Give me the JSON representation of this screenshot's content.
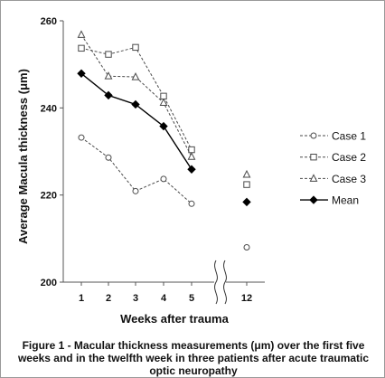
{
  "chart_data": {
    "type": "line",
    "xlabel": "Weeks after trauma",
    "ylabel": "Average Macula thickness (μm)",
    "x_tick_labels": [
      "1",
      "2",
      "3",
      "4",
      "5",
      "12"
    ],
    "y_ticks": [
      200,
      220,
      240,
      260
    ],
    "ylim": [
      200,
      260
    ],
    "axis_break_between": [
      "5",
      "12"
    ],
    "grid": false,
    "legend_position": "right",
    "series": [
      {
        "name": "Case 1",
        "marker": "circle",
        "line_style": "dashed",
        "color": "#4a4a4a",
        "values": [
          233.2,
          228.6,
          220.9,
          223.7,
          218.0,
          208.0
        ]
      },
      {
        "name": "Case 2",
        "marker": "square",
        "line_style": "dashed",
        "color": "#4a4a4a",
        "values": [
          253.7,
          252.3,
          253.9,
          242.7,
          230.4,
          222.4
        ]
      },
      {
        "name": "Case 3",
        "marker": "triangle",
        "line_style": "dashed",
        "color": "#4a4a4a",
        "values": [
          256.8,
          247.3,
          247.1,
          241.2,
          228.8,
          224.7
        ]
      },
      {
        "name": "Mean",
        "marker": "diamond-filled",
        "line_style": "solid",
        "color": "#000000",
        "values": [
          247.9,
          242.9,
          240.8,
          235.8,
          225.9,
          218.4
        ]
      }
    ]
  },
  "caption": "Figure 1 - Macular thickness measurements (μm) over the first five weeks and in the twelfth week in three patients after acute traumatic optic neuropathy"
}
